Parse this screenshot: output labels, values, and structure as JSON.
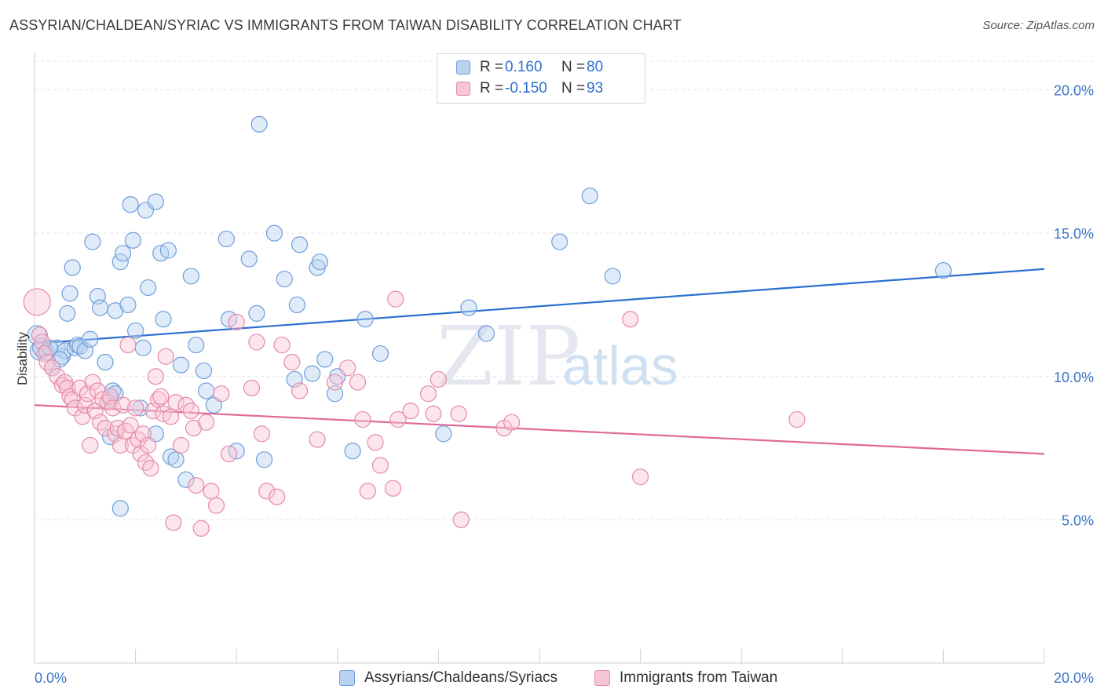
{
  "title": "ASSYRIAN/CHALDEAN/SYRIAC VS IMMIGRANTS FROM TAIWAN DISABILITY CORRELATION CHART",
  "source": "Source: ZipAtlas.com",
  "watermark": "ZIPatlas",
  "legend": {
    "r_label": "R =",
    "n_label": "N =",
    "rows": [
      {
        "r": "0.160",
        "n": "80",
        "color": "#6f9ed9"
      },
      {
        "r": "-0.150",
        "n": "93",
        "color": "#e38aa8"
      }
    ]
  },
  "bottom_legend": [
    "Assyrians/Chaldeans/Syriacs",
    "Immigrants from Taiwan"
  ],
  "chart_data": {
    "type": "scatter",
    "title": "ASSYRIAN/CHALDEAN/SYRIAC VS IMMIGRANTS FROM TAIWAN DISABILITY CORRELATION CHART",
    "xlabel": "",
    "ylabel": "Disability",
    "xlim": [
      0,
      20
    ],
    "ylim": [
      0,
      21
    ],
    "x_tick_labels": [
      "0.0%",
      "20.0%"
    ],
    "y_ticks": [
      5,
      10,
      15,
      20
    ],
    "y_tick_labels": [
      "5.0%",
      "10.0%",
      "15.0%",
      "20.0%"
    ],
    "grid": "horizontal dashed",
    "legend_position": "top-center",
    "series": [
      {
        "name": "Assyrians/Chaldeans/Syriacs",
        "color": "#6f9ed9",
        "fill": "#b9d2f2",
        "trend": {
          "x": [
            0,
            20
          ],
          "y": [
            11.15,
            13.75
          ]
        },
        "points": [
          [
            0.05,
            11.45
          ],
          [
            0.1,
            10.9
          ],
          [
            0.15,
            11.0
          ],
          [
            0.25,
            10.85
          ],
          [
            0.35,
            10.3
          ],
          [
            0.45,
            11.0
          ],
          [
            0.55,
            10.7
          ],
          [
            0.6,
            10.9
          ],
          [
            0.65,
            12.2
          ],
          [
            0.7,
            12.9
          ],
          [
            0.75,
            13.8
          ],
          [
            0.8,
            11.0
          ],
          [
            0.85,
            11.1
          ],
          [
            0.9,
            11.05
          ],
          [
            1.0,
            10.9
          ],
          [
            1.1,
            11.3
          ],
          [
            1.15,
            14.7
          ],
          [
            1.25,
            12.8
          ],
          [
            1.3,
            12.4
          ],
          [
            1.4,
            10.5
          ],
          [
            1.5,
            9.2
          ],
          [
            1.55,
            9.5
          ],
          [
            1.6,
            9.4
          ],
          [
            1.5,
            7.9
          ],
          [
            1.6,
            12.3
          ],
          [
            1.7,
            5.4
          ],
          [
            1.7,
            14.0
          ],
          [
            1.75,
            14.3
          ],
          [
            1.85,
            12.5
          ],
          [
            1.9,
            16.0
          ],
          [
            1.95,
            14.75
          ],
          [
            2.0,
            11.6
          ],
          [
            2.1,
            8.9
          ],
          [
            2.15,
            11.0
          ],
          [
            2.2,
            15.8
          ],
          [
            2.25,
            13.1
          ],
          [
            2.4,
            16.1
          ],
          [
            2.5,
            14.3
          ],
          [
            2.55,
            12.0
          ],
          [
            2.65,
            14.4
          ],
          [
            2.7,
            7.2
          ],
          [
            2.8,
            7.1
          ],
          [
            2.9,
            10.4
          ],
          [
            3.0,
            6.4
          ],
          [
            3.1,
            13.5
          ],
          [
            3.2,
            11.1
          ],
          [
            3.35,
            10.2
          ],
          [
            3.4,
            9.5
          ],
          [
            3.55,
            9.0
          ],
          [
            3.8,
            14.8
          ],
          [
            3.85,
            12.0
          ],
          [
            4.0,
            7.4
          ],
          [
            4.25,
            14.1
          ],
          [
            4.45,
            18.8
          ],
          [
            4.4,
            12.2
          ],
          [
            4.55,
            7.1
          ],
          [
            4.75,
            15.0
          ],
          [
            4.95,
            13.4
          ],
          [
            5.15,
            9.9
          ],
          [
            5.2,
            12.5
          ],
          [
            5.25,
            14.6
          ],
          [
            5.5,
            10.1
          ],
          [
            5.6,
            13.8
          ],
          [
            5.65,
            14.0
          ],
          [
            5.75,
            10.6
          ],
          [
            5.95,
            9.4
          ],
          [
            6.0,
            10.0
          ],
          [
            6.3,
            7.4
          ],
          [
            6.55,
            12.0
          ],
          [
            6.85,
            10.8
          ],
          [
            8.1,
            8.0
          ],
          [
            8.6,
            12.4
          ],
          [
            8.95,
            11.5
          ],
          [
            10.4,
            14.7
          ],
          [
            11.0,
            16.3
          ],
          [
            11.45,
            13.5
          ],
          [
            18.0,
            13.7
          ],
          [
            0.3,
            11.0
          ],
          [
            2.4,
            8.0
          ],
          [
            0.5,
            10.6
          ]
        ]
      },
      {
        "name": "Immigrants from Taiwan",
        "color": "#e38aa8",
        "fill": "#f8c5d4",
        "trend": {
          "x": [
            0,
            20
          ],
          "y": [
            9.0,
            7.3
          ]
        },
        "points": [
          [
            0.05,
            12.6
          ],
          [
            0.1,
            11.45
          ],
          [
            0.15,
            11.2
          ],
          [
            0.2,
            10.8
          ],
          [
            0.25,
            10.5
          ],
          [
            0.35,
            10.3
          ],
          [
            0.45,
            10.0
          ],
          [
            0.55,
            9.7
          ],
          [
            0.6,
            9.8
          ],
          [
            0.65,
            9.6
          ],
          [
            0.7,
            9.3
          ],
          [
            0.75,
            9.2
          ],
          [
            0.8,
            8.9
          ],
          [
            0.9,
            9.6
          ],
          [
            0.95,
            8.6
          ],
          [
            1.0,
            9.0
          ],
          [
            1.05,
            9.4
          ],
          [
            1.1,
            7.6
          ],
          [
            1.15,
            9.8
          ],
          [
            1.2,
            8.8
          ],
          [
            1.25,
            9.5
          ],
          [
            1.3,
            8.4
          ],
          [
            1.35,
            9.2
          ],
          [
            1.4,
            8.2
          ],
          [
            1.45,
            9.1
          ],
          [
            1.5,
            9.3
          ],
          [
            1.55,
            8.9
          ],
          [
            1.6,
            8.0
          ],
          [
            1.65,
            8.2
          ],
          [
            1.7,
            7.6
          ],
          [
            1.75,
            9.0
          ],
          [
            1.8,
            8.1
          ],
          [
            1.85,
            11.1
          ],
          [
            1.9,
            8.3
          ],
          [
            1.95,
            7.6
          ],
          [
            2.0,
            8.9
          ],
          [
            2.05,
            7.8
          ],
          [
            2.1,
            7.3
          ],
          [
            2.15,
            8.0
          ],
          [
            2.2,
            7.0
          ],
          [
            2.25,
            7.6
          ],
          [
            2.3,
            6.8
          ],
          [
            2.35,
            8.8
          ],
          [
            2.4,
            10.0
          ],
          [
            2.45,
            9.2
          ],
          [
            2.5,
            9.3
          ],
          [
            2.55,
            8.7
          ],
          [
            2.6,
            10.7
          ],
          [
            2.7,
            8.6
          ],
          [
            2.75,
            4.9
          ],
          [
            2.8,
            9.1
          ],
          [
            2.9,
            7.6
          ],
          [
            3.0,
            9.0
          ],
          [
            3.1,
            8.8
          ],
          [
            3.15,
            8.2
          ],
          [
            3.2,
            6.2
          ],
          [
            3.3,
            4.7
          ],
          [
            3.4,
            8.4
          ],
          [
            3.5,
            6.0
          ],
          [
            3.6,
            5.5
          ],
          [
            3.7,
            9.4
          ],
          [
            3.85,
            7.3
          ],
          [
            4.0,
            11.9
          ],
          [
            4.3,
            9.6
          ],
          [
            4.4,
            11.2
          ],
          [
            4.5,
            8.0
          ],
          [
            4.6,
            6.0
          ],
          [
            4.8,
            5.8
          ],
          [
            4.9,
            11.1
          ],
          [
            5.1,
            10.5
          ],
          [
            5.25,
            9.5
          ],
          [
            5.6,
            7.8
          ],
          [
            5.95,
            9.8
          ],
          [
            6.2,
            10.3
          ],
          [
            6.4,
            9.8
          ],
          [
            6.5,
            8.5
          ],
          [
            6.6,
            6.0
          ],
          [
            6.75,
            7.7
          ],
          [
            6.85,
            6.9
          ],
          [
            7.1,
            6.1
          ],
          [
            7.15,
            12.7
          ],
          [
            7.2,
            8.5
          ],
          [
            7.45,
            8.8
          ],
          [
            7.8,
            9.4
          ],
          [
            7.9,
            8.7
          ],
          [
            8.0,
            9.9
          ],
          [
            8.4,
            8.7
          ],
          [
            8.45,
            5.0
          ],
          [
            9.3,
            8.2
          ],
          [
            9.45,
            8.4
          ],
          [
            11.8,
            12.0
          ],
          [
            12.0,
            6.5
          ],
          [
            15.1,
            8.5
          ]
        ]
      }
    ]
  }
}
